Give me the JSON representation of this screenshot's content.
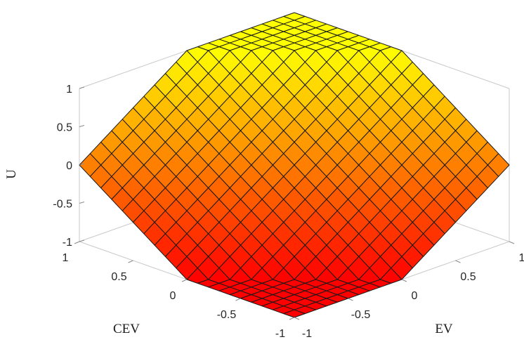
{
  "chart_data": {
    "type": "surface",
    "title": "",
    "xlabel": "EV",
    "ylabel": "CEV",
    "zlabel": "U",
    "xlim": [
      -1,
      1
    ],
    "ylim": [
      -1,
      1
    ],
    "zlim": [
      -1,
      1
    ],
    "x_ticks": [
      "-1",
      "-0.5",
      "0",
      "0.5",
      "1"
    ],
    "y_ticks": [
      "-1",
      "-0.5",
      "0",
      "0.5",
      "1"
    ],
    "z_ticks": [
      "-1",
      "-0.5",
      "0",
      "0.5",
      "1"
    ],
    "grid_resolution": [
      21,
      21
    ],
    "surface_formula": "U = max(-1, min(1, EV + CEV))",
    "colormap": "autumn",
    "colormap_low": "#ff0000",
    "colormap_high": "#ffff00",
    "edge_color": "#1a1a1a",
    "box": "on",
    "grid": "off"
  }
}
